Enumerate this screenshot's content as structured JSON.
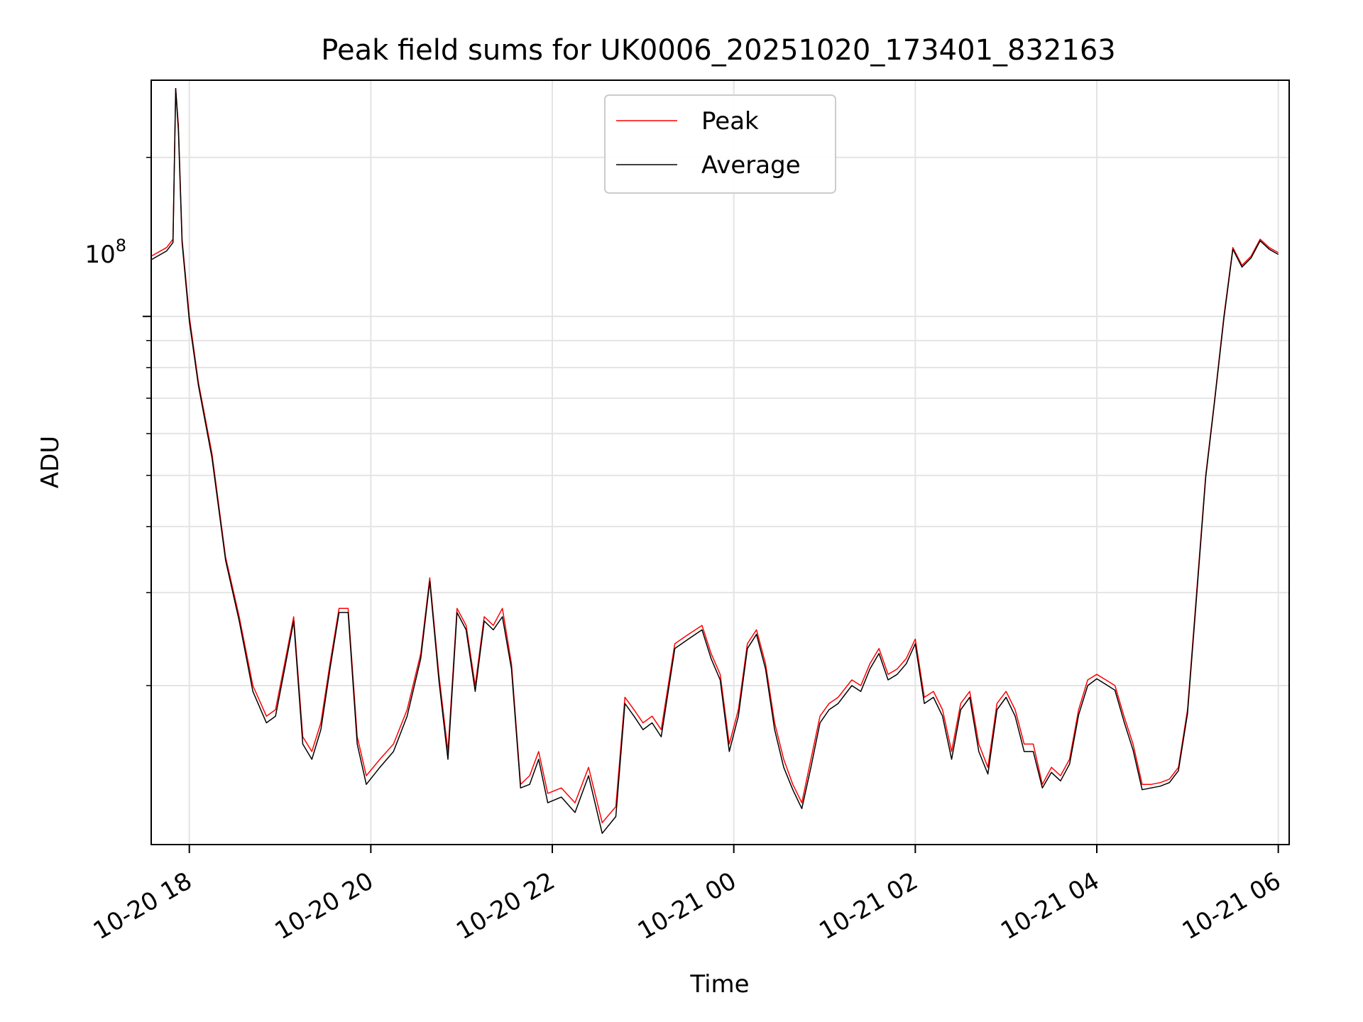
{
  "chart_data": {
    "type": "line",
    "title": "Peak field sums for UK0006_20251020_173401_832163",
    "xlabel": "Time",
    "ylabel": "ADU",
    "y_scale": "log",
    "ylim": [
      10000000,
      280000000
    ],
    "xlim_hours": [
      17.58,
      30.12
    ],
    "grid": true,
    "legend_position": "upper-center",
    "x_ticks": [
      {
        "hour": 18,
        "label": "10-20 18"
      },
      {
        "hour": 20,
        "label": "10-20 20"
      },
      {
        "hour": 22,
        "label": "10-20 22"
      },
      {
        "hour": 24,
        "label": "10-21 00"
      },
      {
        "hour": 26,
        "label": "10-21 02"
      },
      {
        "hour": 28,
        "label": "10-21 04"
      },
      {
        "hour": 30,
        "label": "10-21 06"
      }
    ],
    "y_major_tick": {
      "value": 100000000,
      "label_base": "10",
      "label_exp": "8"
    },
    "y_minor_ticks": [
      20000000,
      30000000,
      40000000,
      50000000,
      60000000,
      70000000,
      80000000,
      90000000,
      200000000
    ],
    "x_hours": [
      17.58,
      17.75,
      17.82,
      17.85,
      17.88,
      17.92,
      18.0,
      18.1,
      18.25,
      18.4,
      18.55,
      18.7,
      18.85,
      18.95,
      19.05,
      19.15,
      19.25,
      19.35,
      19.45,
      19.55,
      19.65,
      19.75,
      19.85,
      19.95,
      20.1,
      20.25,
      20.4,
      20.55,
      20.65,
      20.75,
      20.85,
      20.95,
      21.05,
      21.15,
      21.25,
      21.35,
      21.45,
      21.55,
      21.65,
      21.75,
      21.85,
      21.95,
      22.1,
      22.25,
      22.4,
      22.55,
      22.7,
      22.8,
      22.9,
      23.0,
      23.1,
      23.2,
      23.35,
      23.5,
      23.65,
      23.75,
      23.85,
      23.95,
      24.05,
      24.15,
      24.25,
      24.35,
      24.45,
      24.55,
      24.65,
      24.75,
      24.85,
      24.95,
      25.05,
      25.15,
      25.3,
      25.4,
      25.5,
      25.6,
      25.7,
      25.8,
      25.9,
      26.0,
      26.1,
      26.2,
      26.3,
      26.4,
      26.5,
      26.6,
      26.7,
      26.8,
      26.9,
      27.0,
      27.1,
      27.2,
      27.3,
      27.4,
      27.5,
      27.6,
      27.7,
      27.8,
      27.9,
      28.0,
      28.1,
      28.2,
      28.3,
      28.4,
      28.5,
      28.6,
      28.7,
      28.8,
      28.9,
      29.0,
      29.1,
      29.2,
      29.3,
      29.4,
      29.5,
      29.6,
      29.7,
      29.8,
      29.9,
      30.0,
      30.05,
      30.12
    ],
    "series": [
      {
        "name": "Peak",
        "color": "#ff0000",
        "values": [
          130000000,
          135000000,
          140000000,
          270000000,
          230000000,
          140000000,
          100000000,
          75000000,
          55000000,
          35000000,
          27000000,
          20000000,
          17500000,
          18000000,
          22000000,
          27000000,
          16000000,
          15000000,
          17000000,
          22000000,
          28000000,
          28000000,
          16000000,
          13500000,
          14500000,
          15500000,
          18000000,
          23000000,
          32000000,
          21000000,
          15000000,
          28000000,
          26000000,
          20000000,
          27000000,
          26000000,
          28000000,
          22000000,
          13000000,
          13500000,
          15000000,
          12500000,
          12800000,
          12000000,
          14000000,
          11000000,
          11800000,
          19000000,
          18000000,
          17000000,
          17500000,
          16500000,
          24000000,
          25000000,
          26000000,
          23000000,
          21000000,
          15500000,
          18000000,
          24000000,
          25500000,
          22000000,
          17000000,
          14500000,
          13000000,
          12000000,
          14500000,
          17500000,
          18500000,
          19000000,
          20500000,
          20000000,
          22000000,
          23500000,
          21000000,
          21500000,
          22500000,
          24500000,
          19000000,
          19500000,
          18000000,
          15000000,
          18500000,
          19500000,
          15500000,
          14000000,
          18500000,
          19500000,
          18000000,
          15500000,
          15500000,
          13000000,
          14000000,
          13500000,
          14500000,
          18000000,
          20500000,
          21000000,
          20500000,
          20000000,
          17500000,
          15500000,
          13000000,
          13000000,
          13100000,
          13300000,
          14000000,
          18000000,
          30000000,
          50000000,
          70000000,
          100000000,
          135000000,
          125000000,
          130000000,
          140000000,
          135000000,
          132000000
        ]
      },
      {
        "name": "Average",
        "color": "#000000",
        "values": [
          128000000,
          133000000,
          138000000,
          270000000,
          225000000,
          138000000,
          98000000,
          74000000,
          54000000,
          34500000,
          26500000,
          19500000,
          17000000,
          17500000,
          21500000,
          26500000,
          15500000,
          14500000,
          16500000,
          21500000,
          27500000,
          27500000,
          15500000,
          13000000,
          14000000,
          15000000,
          17500000,
          22500000,
          31500000,
          20500000,
          14500000,
          27500000,
          25500000,
          19500000,
          26500000,
          25500000,
          27000000,
          21500000,
          12800000,
          13000000,
          14500000,
          12000000,
          12300000,
          11500000,
          13500000,
          10500000,
          11300000,
          18500000,
          17500000,
          16500000,
          17000000,
          16000000,
          23500000,
          24500000,
          25500000,
          22500000,
          20500000,
          15000000,
          17500000,
          23500000,
          25000000,
          21500000,
          16500000,
          14000000,
          12700000,
          11700000,
          14000000,
          17000000,
          18000000,
          18500000,
          20000000,
          19500000,
          21500000,
          23000000,
          20500000,
          21000000,
          22000000,
          24000000,
          18500000,
          19000000,
          17500000,
          14500000,
          18000000,
          19000000,
          15000000,
          13600000,
          18000000,
          19000000,
          17500000,
          15000000,
          15000000,
          12800000,
          13700000,
          13200000,
          14200000,
          17600000,
          20000000,
          20600000,
          20100000,
          19600000,
          17100000,
          15100000,
          12700000,
          12800000,
          12900000,
          13100000,
          13800000,
          17700000,
          29500000,
          49500000,
          69500000,
          99000000,
          134000000,
          124000000,
          129000000,
          139000000,
          134000000,
          131000000
        ]
      }
    ]
  }
}
